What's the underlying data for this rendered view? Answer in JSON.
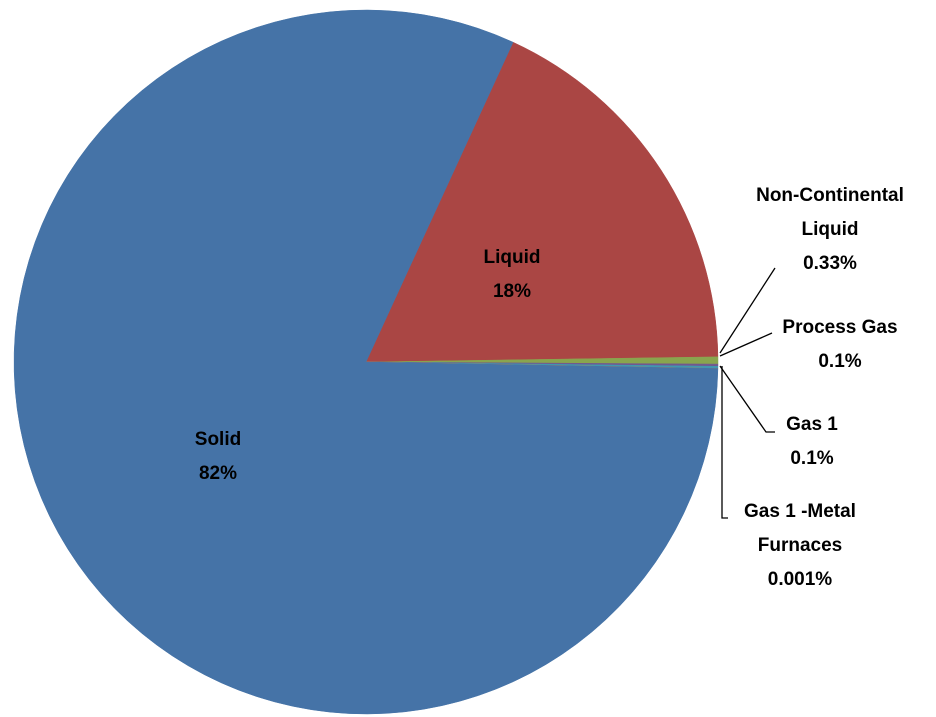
{
  "chart_data": {
    "type": "pie",
    "categories": [
      "Liquid",
      "Non-Continental Liquid",
      "Process Gas",
      "Gas 1",
      "Gas 1 -Metal Furnaces",
      "Solid"
    ],
    "values": [
      18,
      0.33,
      0.1,
      0.1,
      0.001,
      82
    ],
    "value_labels": [
      "18%",
      "0.33%",
      "0.1%",
      "0.1%",
      "0.001%",
      "82%"
    ],
    "colors": [
      "#aa4644",
      "#89a54e",
      "#71588f",
      "#4198af",
      "#db843d",
      "#4573a7"
    ]
  }
}
